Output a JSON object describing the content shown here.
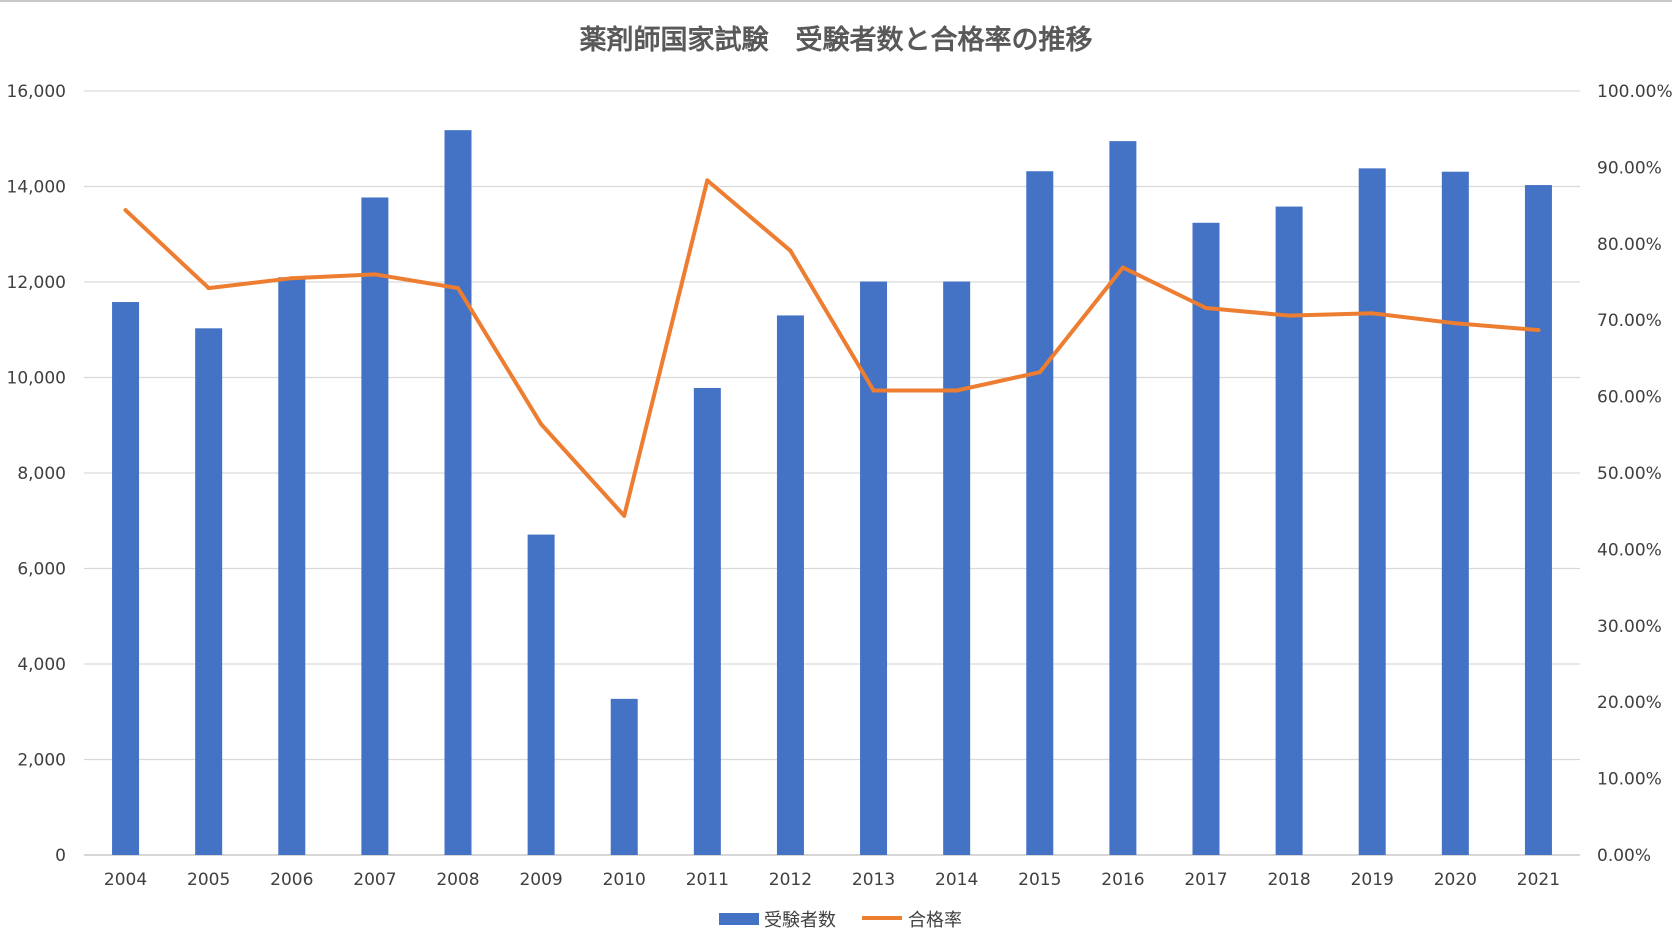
{
  "chart_data": {
    "type": "bar",
    "title": "薬剤師国家試験　受験者数と合格率の推移",
    "categories": [
      "2004",
      "2005",
      "2006",
      "2007",
      "2008",
      "2009",
      "2010",
      "2011",
      "2012",
      "2013",
      "2014",
      "2015",
      "2016",
      "2017",
      "2018",
      "2019",
      "2020",
      "2021"
    ],
    "series": [
      {
        "name": "受験者数",
        "type": "bar",
        "axis": "left",
        "color": "#4472C4",
        "values": [
          11580,
          11030,
          12100,
          13770,
          15180,
          6710,
          3270,
          9780,
          11300,
          12010,
          12010,
          14320,
          14950,
          13240,
          13580,
          14380,
          14310,
          14030
        ]
      },
      {
        "name": "合格率",
        "type": "line",
        "axis": "right",
        "color": "#ED7D31",
        "values": [
          84.4,
          74.2,
          75.5,
          76.0,
          74.2,
          56.4,
          44.4,
          88.3,
          79.1,
          60.8,
          60.8,
          63.2,
          76.9,
          71.6,
          70.6,
          70.9,
          69.6,
          68.7
        ]
      }
    ],
    "y_left": {
      "ylim": [
        0,
        16000
      ],
      "ticks": [
        "0",
        "2,000",
        "4,000",
        "6,000",
        "8,000",
        "10,000",
        "12,000",
        "14,000",
        "16,000"
      ]
    },
    "y_right": {
      "ylim": [
        0,
        100
      ],
      "ticks": [
        "0.00%",
        "10.00%",
        "20.00%",
        "30.00%",
        "40.00%",
        "50.00%",
        "60.00%",
        "70.00%",
        "80.00%",
        "90.00%",
        "100.00%"
      ]
    },
    "grid": true,
    "legend": "bottom"
  }
}
